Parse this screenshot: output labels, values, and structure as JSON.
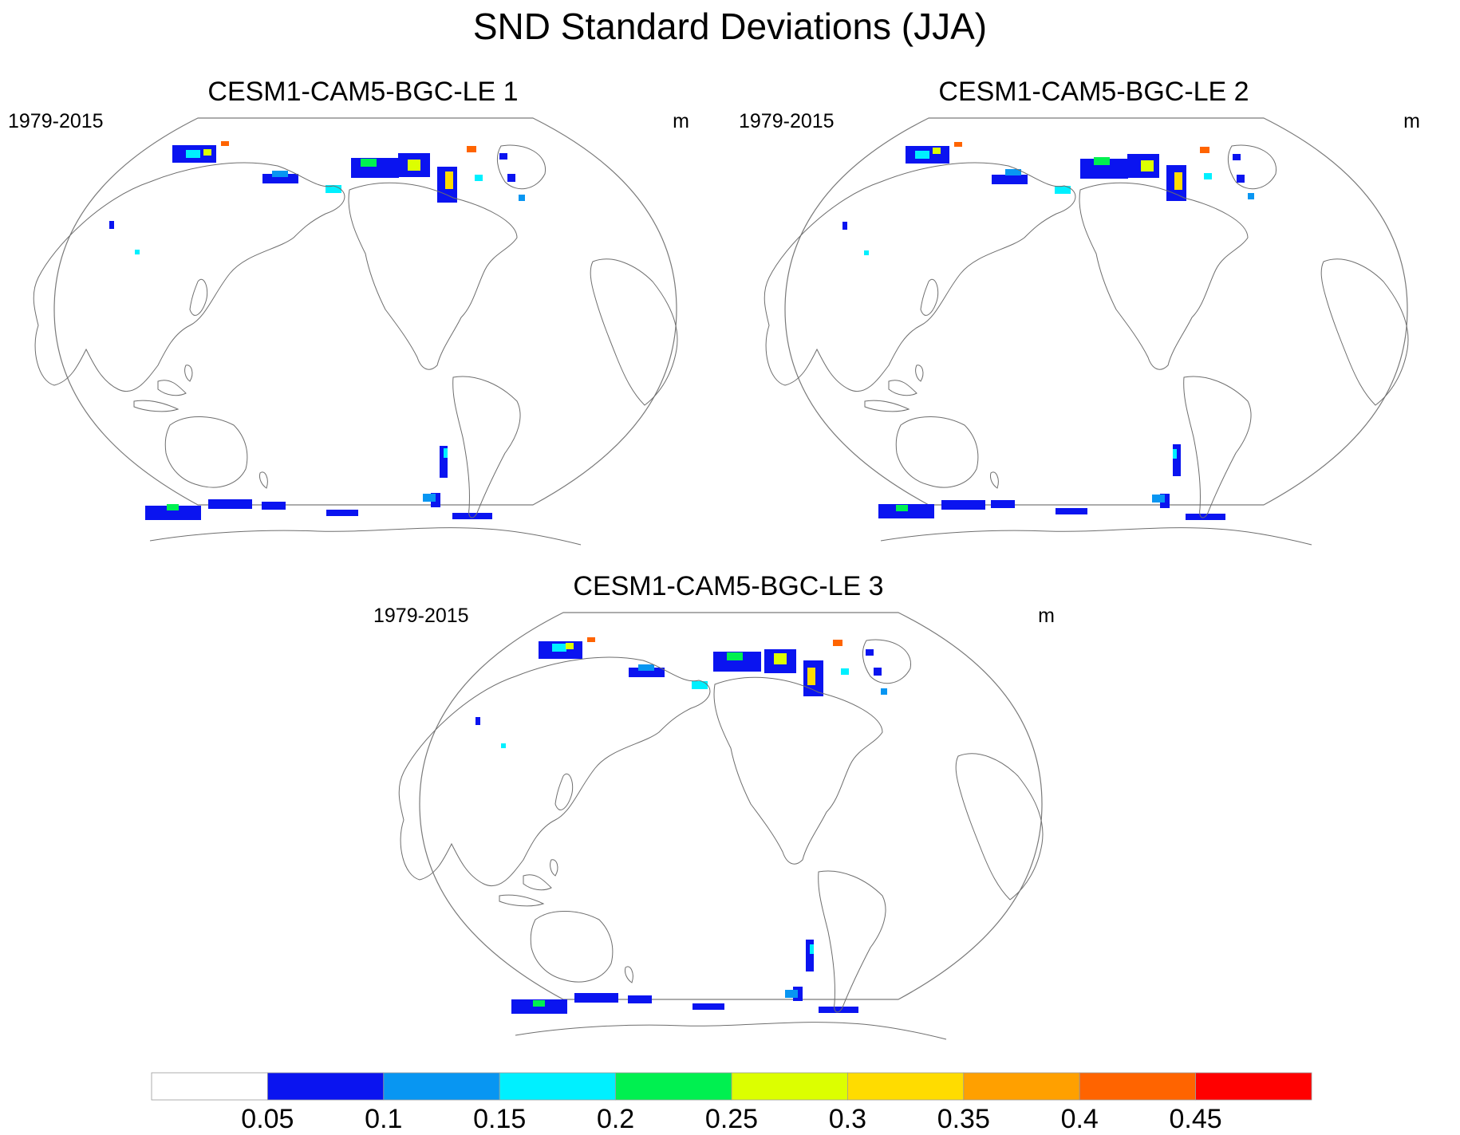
{
  "title": "SND Standard Deviations (JJA)",
  "panels": [
    {
      "title": "CESM1-CAM5-BGC-LE 1",
      "period": "1979-2015",
      "units": "m"
    },
    {
      "title": "CESM1-CAM5-BGC-LE 2",
      "period": "1979-2015",
      "units": "m"
    },
    {
      "title": "CESM1-CAM5-BGC-LE 3",
      "period": "1979-2015",
      "units": "m"
    }
  ],
  "colorbar": {
    "labels": [
      "0.05",
      "0.1",
      "0.15",
      "0.2",
      "0.25",
      "0.3",
      "0.35",
      "0.4",
      "0.45"
    ],
    "colors": [
      "#ffffff",
      "#0a14f0",
      "#0896f2",
      "#00f0ff",
      "#00f050",
      "#dcff00",
      "#ffdc00",
      "#ffa000",
      "#ff6400",
      "#ff0000"
    ]
  },
  "chart_data": {
    "type": "heatmap",
    "title": "SND Standard Deviations (JJA)",
    "variable": "SND",
    "season": "JJA",
    "units": "m",
    "period": "1979-2015",
    "levels": [
      0.05,
      0.1,
      0.15,
      0.2,
      0.25,
      0.3,
      0.35,
      0.4,
      0.45
    ],
    "members": [
      "CESM1-CAM5-BGC-LE 1",
      "CESM1-CAM5-BGC-LE 2",
      "CESM1-CAM5-BGC-LE 3"
    ]
  }
}
